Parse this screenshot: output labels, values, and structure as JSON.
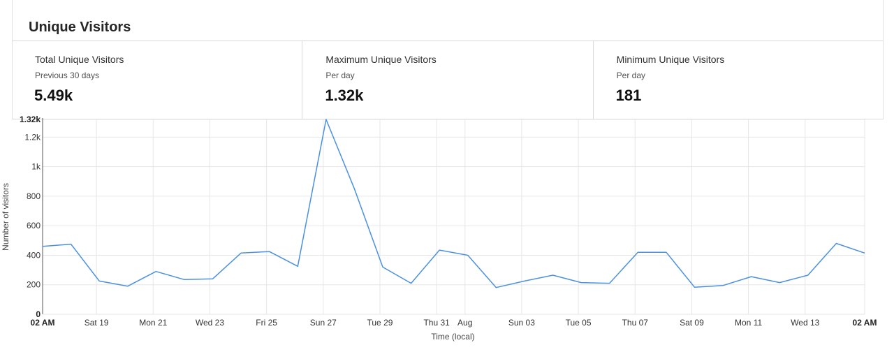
{
  "header": {
    "title": "Unique Visitors"
  },
  "tiles": [
    {
      "label": "Total Unique Visitors",
      "sublabel": "Previous 30 days",
      "value": "5.49k"
    },
    {
      "label": "Maximum Unique Visitors",
      "sublabel": "Per day",
      "value": "1.32k"
    },
    {
      "label": "Minimum Unique Visitors",
      "sublabel": "Per day",
      "value": "181"
    }
  ],
  "chart_data": {
    "type": "line",
    "xlabel": "Time (local)",
    "ylabel": "Number of visitors",
    "ylim": [
      0,
      1320
    ],
    "y_ticks": [
      0,
      200,
      400,
      600,
      800,
      1000,
      1200,
      1320
    ],
    "y_tick_labels": [
      "0",
      "200",
      "400",
      "600",
      "800",
      "1k",
      "1.2k",
      "1.32k"
    ],
    "x_tick_labels": [
      {
        "label": "02 AM",
        "index": 0,
        "bold": true
      },
      {
        "label": "Sat 19",
        "index": 1.9,
        "bold": false
      },
      {
        "label": "Mon 21",
        "index": 3.9,
        "bold": false
      },
      {
        "label": "Wed 23",
        "index": 5.9,
        "bold": false
      },
      {
        "label": "Fri 25",
        "index": 7.9,
        "bold": false
      },
      {
        "label": "Sun 27",
        "index": 9.9,
        "bold": false
      },
      {
        "label": "Tue 29",
        "index": 11.9,
        "bold": false
      },
      {
        "label": "Thu 31",
        "index": 13.9,
        "bold": false
      },
      {
        "label": "Aug",
        "index": 14.9,
        "bold": false
      },
      {
        "label": "Sun 03",
        "index": 16.9,
        "bold": false
      },
      {
        "label": "Tue 05",
        "index": 18.9,
        "bold": false
      },
      {
        "label": "Thu 07",
        "index": 20.9,
        "bold": false
      },
      {
        "label": "Sat 09",
        "index": 22.9,
        "bold": false
      },
      {
        "label": "Mon 11",
        "index": 24.9,
        "bold": false
      },
      {
        "label": "Wed 13",
        "index": 26.9,
        "bold": false
      },
      {
        "label": "02 AM",
        "index": 29,
        "bold": true
      }
    ],
    "series": [
      {
        "color": "#4a90e2",
        "values": [
          460,
          475,
          225,
          190,
          290,
          235,
          240,
          415,
          425,
          325,
          1320,
          850,
          320,
          210,
          435,
          400,
          181,
          225,
          265,
          215,
          210,
          420,
          420,
          183,
          195,
          255,
          215,
          265,
          480,
          415
        ]
      }
    ],
    "grid": true
  }
}
